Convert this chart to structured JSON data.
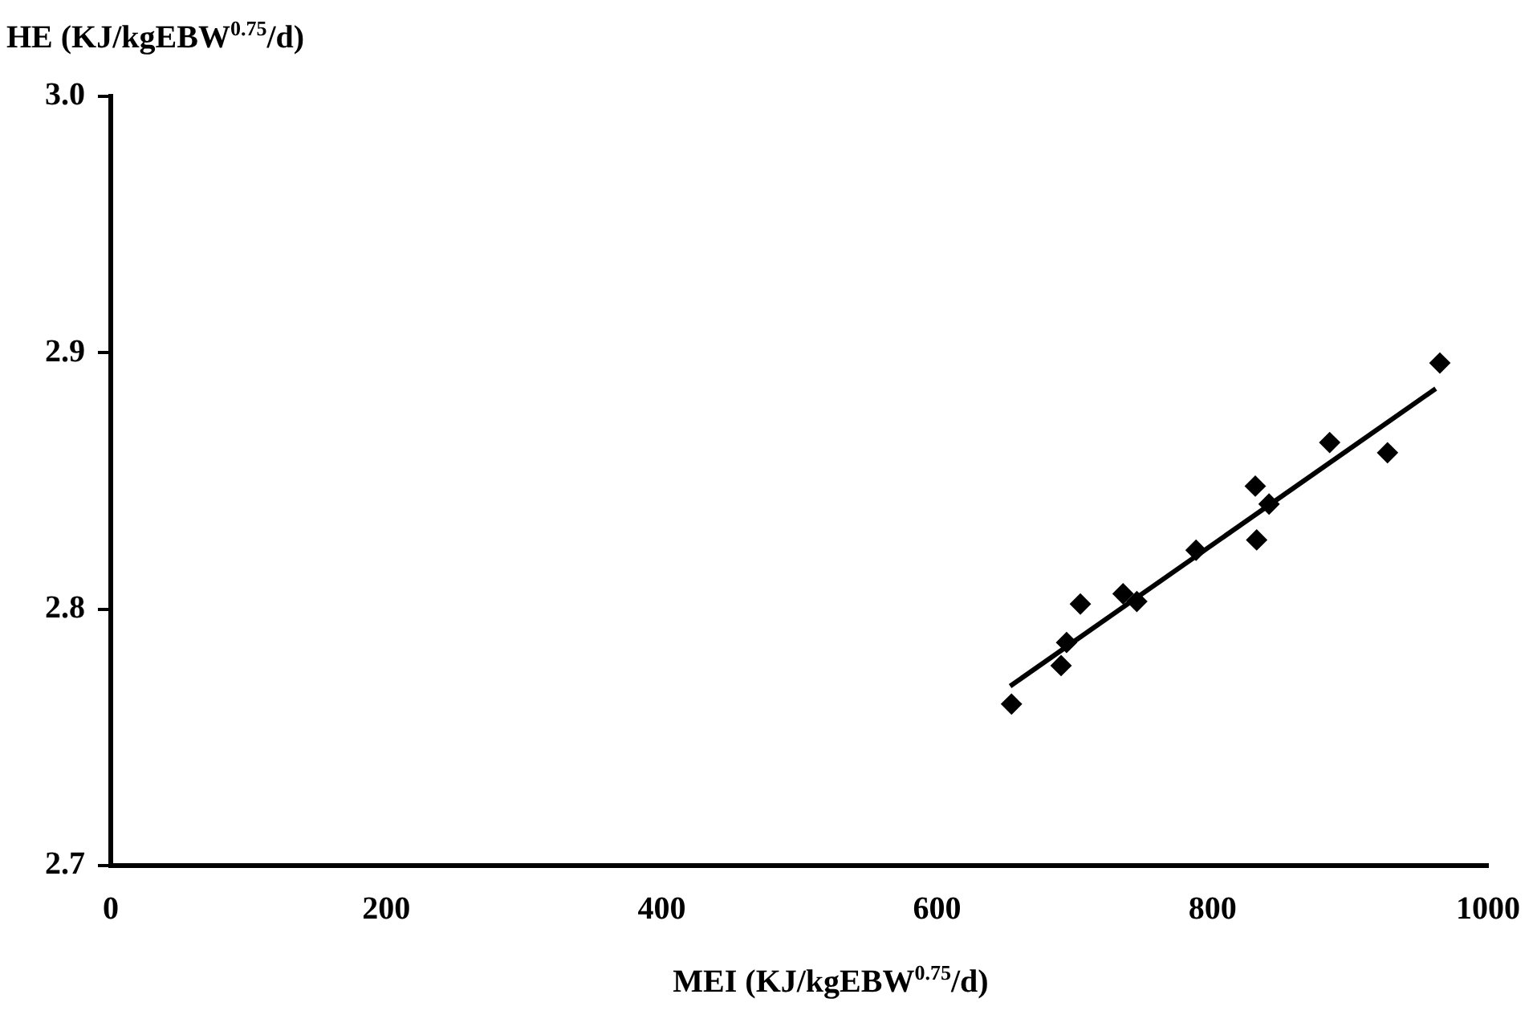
{
  "chart_data": {
    "type": "scatter",
    "xlabel": "MEI (KJ/kgEBW$^{0.75}$/d)",
    "ylabel": "HE (KJ/kgEBW$^{0.75}$/d)",
    "xlim": [
      0,
      1000
    ],
    "xticks": [
      0,
      200,
      400,
      600,
      800,
      1000
    ],
    "ylim": [
      2.7,
      3.0
    ],
    "yticks": [
      {
        "value": 2.7,
        "label": "2.7"
      },
      {
        "value": 2.8,
        "label": "2.8"
      },
      {
        "value": 2.9,
        "label": "2.9"
      },
      {
        "value": 3.0,
        "label": "3.0"
      }
    ],
    "grid": false,
    "legend": false,
    "series": [
      {
        "type": "scatter",
        "marker": "diamond",
        "color": "#000000",
        "x": [
          654,
          690,
          694,
          704,
          735,
          745,
          788,
          831,
          832,
          841,
          885,
          927,
          965
        ],
        "values": [
          2.763,
          2.778,
          2.787,
          2.802,
          2.806,
          2.803,
          2.823,
          2.848,
          2.827,
          2.841,
          2.865,
          2.861,
          2.896
        ]
      },
      {
        "type": "line",
        "marker": "none",
        "color": "#000000",
        "x": [
          653,
          962
        ],
        "values": [
          2.77,
          2.886
        ]
      }
    ]
  }
}
